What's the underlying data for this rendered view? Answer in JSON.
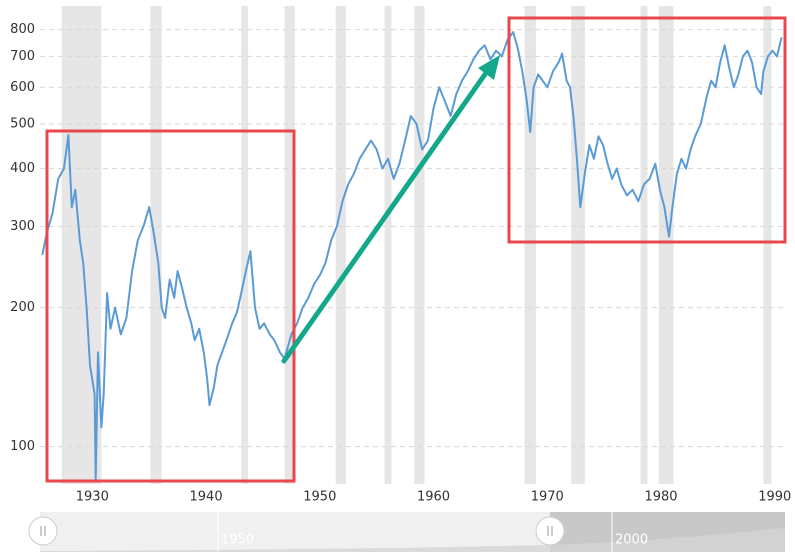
{
  "chart_data": {
    "type": "line",
    "log_scale": true,
    "grid": true,
    "xlim": [
      1925.4,
      1990.9
    ],
    "xticks": [
      1930,
      1940,
      1950,
      1960,
      1970,
      1980,
      1990
    ],
    "ylim": [
      83,
      900
    ],
    "yticks": [
      100,
      200,
      300,
      400,
      500,
      600,
      700,
      800
    ],
    "shaded_color": "#e6e6e6",
    "shaded_ranges": [
      [
        1927.3,
        1930.8
      ],
      [
        1935.1,
        1936.1
      ],
      [
        1943.1,
        1943.7
      ],
      [
        1946.9,
        1947.8
      ],
      [
        1951.4,
        1952.3
      ],
      [
        1955.7,
        1956.3
      ],
      [
        1958.3,
        1959.2
      ],
      [
        1968.0,
        1969.0
      ],
      [
        1972.1,
        1973.3
      ],
      [
        1978.2,
        1978.8
      ],
      [
        1979.8,
        1981.1
      ],
      [
        1989.0,
        1989.7
      ]
    ],
    "series": [
      {
        "color": "#5b9bd5",
        "x": [
          1925.6,
          1926.0,
          1926.5,
          1927.0,
          1927.5,
          1927.9,
          1928.2,
          1928.5,
          1928.9,
          1929.2,
          1929.5,
          1929.8,
          1930.2,
          1930.3,
          1930.5,
          1930.8,
          1931.0,
          1931.3,
          1931.6,
          1932.0,
          1932.5,
          1933.0,
          1933.5,
          1934.0,
          1934.5,
          1935.0,
          1935.4,
          1935.8,
          1936.1,
          1936.4,
          1936.8,
          1937.2,
          1937.5,
          1937.9,
          1938.3,
          1938.7,
          1939.0,
          1939.4,
          1939.8,
          1940.1,
          1940.3,
          1940.7,
          1941.0,
          1941.4,
          1941.8,
          1942.3,
          1942.7,
          1943.0,
          1943.5,
          1943.9,
          1944.3,
          1944.7,
          1945.1,
          1945.6,
          1946.0,
          1946.5,
          1946.9,
          1947.5,
          1948.0,
          1948.5,
          1949.0,
          1949.5,
          1950.0,
          1950.5,
          1951.0,
          1951.5,
          1952.0,
          1952.5,
          1953.0,
          1953.5,
          1954.0,
          1954.5,
          1955.0,
          1955.5,
          1956.0,
          1956.5,
          1957.0,
          1957.5,
          1958.0,
          1958.5,
          1959.0,
          1959.5,
          1960.0,
          1960.5,
          1961.0,
          1961.5,
          1962.0,
          1962.5,
          1963.0,
          1963.5,
          1964.0,
          1964.5,
          1965.0,
          1965.5,
          1966.0,
          1966.5,
          1967.0,
          1967.4,
          1967.8,
          1968.2,
          1968.5,
          1968.8,
          1969.2,
          1969.6,
          1970.0,
          1970.5,
          1971.0,
          1971.3,
          1971.7,
          1972.0,
          1972.3,
          1972.6,
          1972.9,
          1973.3,
          1973.7,
          1974.1,
          1974.5,
          1974.9,
          1975.3,
          1975.7,
          1976.1,
          1976.5,
          1977.0,
          1977.5,
          1978.0,
          1978.5,
          1979.0,
          1979.5,
          1979.9,
          1980.3,
          1980.7,
          1981.0,
          1981.4,
          1981.8,
          1982.2,
          1982.6,
          1983.0,
          1983.5,
          1984.0,
          1984.4,
          1984.8,
          1985.2,
          1985.6,
          1986.0,
          1986.4,
          1986.8,
          1987.2,
          1987.6,
          1988.0,
          1988.4,
          1988.8,
          1989.0,
          1989.4,
          1989.8,
          1990.2,
          1990.6
        ],
        "values": [
          260,
          290,
          320,
          380,
          400,
          473,
          330,
          360,
          280,
          250,
          200,
          150,
          130,
          85,
          160,
          110,
          130,
          215,
          180,
          200,
          175,
          190,
          240,
          280,
          300,
          330,
          290,
          250,
          200,
          190,
          230,
          210,
          240,
          220,
          200,
          185,
          170,
          180,
          160,
          140,
          123,
          135,
          150,
          160,
          170,
          185,
          195,
          210,
          240,
          265,
          200,
          180,
          185,
          175,
          170,
          160,
          155,
          175,
          185,
          200,
          210,
          225,
          235,
          250,
          280,
          300,
          340,
          370,
          390,
          420,
          440,
          460,
          440,
          400,
          420,
          380,
          410,
          460,
          520,
          500,
          440,
          460,
          540,
          600,
          560,
          520,
          580,
          620,
          650,
          690,
          720,
          740,
          690,
          720,
          700,
          760,
          790,
          730,
          650,
          560,
          480,
          600,
          640,
          620,
          600,
          650,
          680,
          710,
          620,
          600,
          520,
          420,
          330,
          390,
          450,
          420,
          470,
          450,
          410,
          380,
          400,
          370,
          350,
          360,
          340,
          370,
          380,
          410,
          360,
          330,
          285,
          330,
          390,
          420,
          400,
          440,
          470,
          500,
          570,
          620,
          600,
          680,
          740,
          660,
          600,
          640,
          700,
          720,
          680,
          600,
          580,
          650,
          700,
          720,
          700,
          770
        ]
      }
    ]
  },
  "navigator": {
    "labels": [
      "1950",
      "2000"
    ]
  }
}
